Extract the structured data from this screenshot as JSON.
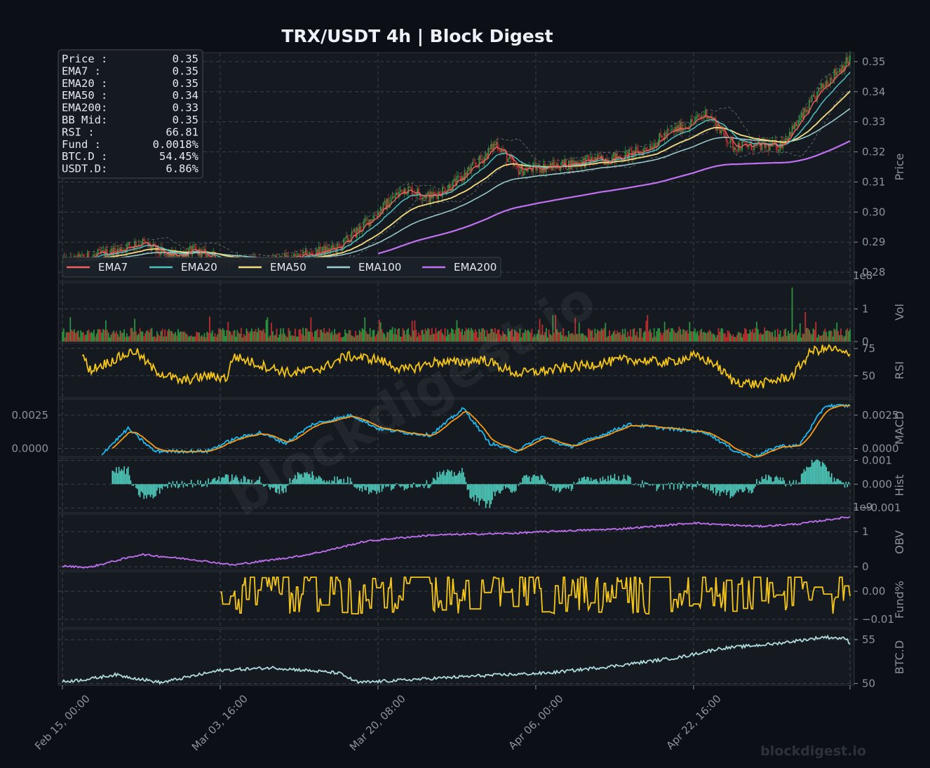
{
  "title": "TRX/USDT  4h  |  Block Digest",
  "watermark": "blockdigest.io",
  "footer_watermark": "blockdigest.io",
  "colors": {
    "ema7": "#f06060",
    "ema20": "#4fc0c0",
    "ema50": "#f5dc80",
    "ema100": "#9ed0d0",
    "ema200": "#c070f0",
    "rsi": "#f5c518",
    "macd": "#1eb8f0",
    "signal": "#f59a18",
    "hist": "#50d0c0",
    "obv": "#c070f0",
    "funding": "#f5c518",
    "btcd": "#b0dcdc",
    "up": "#2ea043",
    "down": "#d03030"
  },
  "info_box": [
    {
      "label": "Price :",
      "value": "0.35"
    },
    {
      "label": "EMA7  :",
      "value": "0.35"
    },
    {
      "label": "EMA20 :",
      "value": "0.35"
    },
    {
      "label": "EMA50 :",
      "value": "0.34"
    },
    {
      "label": "EMA200:",
      "value": "0.33"
    },
    {
      "label": "BB Mid:",
      "value": "0.35"
    },
    {
      "label": "RSI   :",
      "value": "66.81"
    },
    {
      "label": "Fund  :",
      "value": "0.0018%"
    },
    {
      "label": "BTC.D :",
      "value": "54.45%"
    },
    {
      "label": "USDT.D:",
      "value": "6.86%"
    }
  ],
  "legend": [
    {
      "name": "EMA7",
      "color": "#f06060"
    },
    {
      "name": "EMA20",
      "color": "#4fc0c0"
    },
    {
      "name": "EMA50",
      "color": "#f5dc80"
    },
    {
      "name": "EMA100",
      "color": "#9ed0d0"
    },
    {
      "name": "EMA200",
      "color": "#c070f0"
    }
  ],
  "chart_data": {
    "type": "line",
    "x_ticks": [
      "Feb 15, 00:00",
      "Mar 03, 16:00",
      "Mar 20, 08:00",
      "Apr 06, 00:00",
      "Apr 22, 16:00"
    ],
    "bars_total": 600,
    "panels": [
      {
        "id": "price",
        "ylabel": "Price",
        "ylim": [
          0.277,
          0.353
        ],
        "ticks": [
          "0.28",
          "0.29",
          "0.30",
          "0.31",
          "0.32",
          "0.33",
          "0.34",
          "0.35"
        ],
        "tick_values": [
          0.28,
          0.29,
          0.3,
          0.31,
          0.32,
          0.33,
          0.34,
          0.35
        ],
        "offset_label": "1e8"
      },
      {
        "id": "vol",
        "ylabel": "Vol",
        "ylim": [
          0,
          1.8
        ],
        "ticks": [
          "0",
          "1"
        ],
        "tick_values": [
          0,
          1
        ],
        "offset_label": ""
      },
      {
        "id": "rsi",
        "ylabel": "RSI",
        "ylim": [
          30,
          80
        ],
        "ticks": [
          "50",
          "75"
        ],
        "tick_values": [
          50,
          75
        ],
        "offset_label": ""
      },
      {
        "id": "macd",
        "ylabel": "MACD",
        "ylim": [
          -0.0006,
          0.0037
        ],
        "ticks": [
          "0.0000",
          "0.0025"
        ],
        "tick_values": [
          0,
          0.0025
        ],
        "left_ticks": [
          "0.0000",
          "0.0025"
        ],
        "offset_label": ""
      },
      {
        "id": "hist",
        "ylabel": "Hist",
        "ylim": [
          -0.0012,
          0.0011
        ],
        "ticks": [
          "−0.001",
          "0.000",
          "0.001"
        ],
        "tick_values": [
          -0.001,
          0,
          0.001
        ],
        "offset_label": "1e9"
      },
      {
        "id": "obv",
        "ylabel": "OBV",
        "ylim": [
          -0.1,
          1.5
        ],
        "ticks": [
          "0",
          "1"
        ],
        "tick_values": [
          0,
          1
        ],
        "offset_label": ""
      },
      {
        "id": "fund",
        "ylabel": "Fund%",
        "ylim": [
          -0.013,
          0.007
        ],
        "ticks": [
          "−0.01",
          "0.00"
        ],
        "tick_values": [
          -0.01,
          0
        ],
        "offset_label": ""
      },
      {
        "id": "btcd",
        "ylabel": "BTC.D",
        "ylim": [
          49.8,
          56.2
        ],
        "ticks": [
          "50",
          "55"
        ],
        "tick_values": [
          50,
          55
        ],
        "offset_label": ""
      }
    ],
    "price_anchors": [
      [
        0,
        0.283
      ],
      [
        40,
        0.287
      ],
      [
        60,
        0.29
      ],
      [
        80,
        0.285
      ],
      [
        100,
        0.287
      ],
      [
        120,
        0.284
      ],
      [
        150,
        0.283
      ],
      [
        180,
        0.285
      ],
      [
        210,
        0.288
      ],
      [
        240,
        0.3
      ],
      [
        260,
        0.308
      ],
      [
        280,
        0.305
      ],
      [
        300,
        0.31
      ],
      [
        320,
        0.318
      ],
      [
        330,
        0.323
      ],
      [
        345,
        0.314
      ],
      [
        370,
        0.315
      ],
      [
        400,
        0.317
      ],
      [
        420,
        0.318
      ],
      [
        440,
        0.32
      ],
      [
        460,
        0.326
      ],
      [
        480,
        0.33
      ],
      [
        490,
        0.333
      ],
      [
        510,
        0.322
      ],
      [
        530,
        0.322
      ],
      [
        545,
        0.322
      ],
      [
        560,
        0.33
      ],
      [
        580,
        0.343
      ],
      [
        599,
        0.351
      ]
    ],
    "ema200_start": 240,
    "rsi_anchors": [
      [
        15,
        72
      ],
      [
        20,
        55
      ],
      [
        40,
        65
      ],
      [
        55,
        73
      ],
      [
        70,
        55
      ],
      [
        90,
        45
      ],
      [
        110,
        50
      ],
      [
        125,
        48
      ],
      [
        130,
        68
      ],
      [
        150,
        60
      ],
      [
        175,
        52
      ],
      [
        200,
        58
      ],
      [
        215,
        68
      ],
      [
        240,
        65
      ],
      [
        260,
        55
      ],
      [
        285,
        63
      ],
      [
        300,
        62
      ],
      [
        320,
        65
      ],
      [
        345,
        52
      ],
      [
        370,
        55
      ],
      [
        400,
        60
      ],
      [
        430,
        65
      ],
      [
        460,
        62
      ],
      [
        480,
        68
      ],
      [
        495,
        62
      ],
      [
        510,
        45
      ],
      [
        530,
        42
      ],
      [
        555,
        50
      ],
      [
        570,
        73
      ],
      [
        585,
        75
      ],
      [
        599,
        68
      ]
    ],
    "macd_anchors": [
      [
        30,
        -0.0004
      ],
      [
        50,
        0.0015
      ],
      [
        70,
        -0.0002
      ],
      [
        110,
        -0.0002
      ],
      [
        130,
        0.0007
      ],
      [
        150,
        0.0012
      ],
      [
        170,
        0.0004
      ],
      [
        190,
        0.0018
      ],
      [
        220,
        0.0025
      ],
      [
        240,
        0.0015
      ],
      [
        260,
        0.0012
      ],
      [
        280,
        0.001
      ],
      [
        305,
        0.003
      ],
      [
        325,
        0.0004
      ],
      [
        345,
        -0.0002
      ],
      [
        365,
        0.0009
      ],
      [
        385,
        0.0001
      ],
      [
        410,
        0.001
      ],
      [
        430,
        0.0018
      ],
      [
        460,
        0.0015
      ],
      [
        490,
        0.0012
      ],
      [
        510,
        -0.0001
      ],
      [
        525,
        -0.0007
      ],
      [
        545,
        0.0002
      ],
      [
        560,
        0.0002
      ],
      [
        580,
        0.0032
      ],
      [
        599,
        0.0032
      ]
    ],
    "obv_anchors": [
      [
        0,
        0.02
      ],
      [
        20,
        -0.02
      ],
      [
        60,
        0.35
      ],
      [
        100,
        0.2
      ],
      [
        130,
        0.05
      ],
      [
        160,
        0.2
      ],
      [
        180,
        0.3
      ],
      [
        200,
        0.45
      ],
      [
        230,
        0.72
      ],
      [
        250,
        0.8
      ],
      [
        280,
        0.9
      ],
      [
        300,
        0.92
      ],
      [
        340,
        0.95
      ],
      [
        380,
        1.02
      ],
      [
        420,
        1.07
      ],
      [
        450,
        1.15
      ],
      [
        480,
        1.25
      ],
      [
        500,
        1.2
      ],
      [
        530,
        1.15
      ],
      [
        560,
        1.22
      ],
      [
        590,
        1.38
      ],
      [
        599,
        1.42
      ]
    ],
    "fund_start": 120,
    "btcd_anchors": [
      [
        0,
        50.2
      ],
      [
        20,
        50.5
      ],
      [
        40,
        51.0
      ],
      [
        75,
        50.1
      ],
      [
        120,
        51.5
      ],
      [
        160,
        51.8
      ],
      [
        210,
        51.2
      ],
      [
        225,
        50.1
      ],
      [
        260,
        50.4
      ],
      [
        320,
        50.9
      ],
      [
        370,
        51.2
      ],
      [
        420,
        52.0
      ],
      [
        470,
        53.0
      ],
      [
        500,
        54.0
      ],
      [
        540,
        54.5
      ],
      [
        580,
        55.3
      ],
      [
        596,
        55.1
      ],
      [
        599,
        54.6
      ]
    ]
  }
}
